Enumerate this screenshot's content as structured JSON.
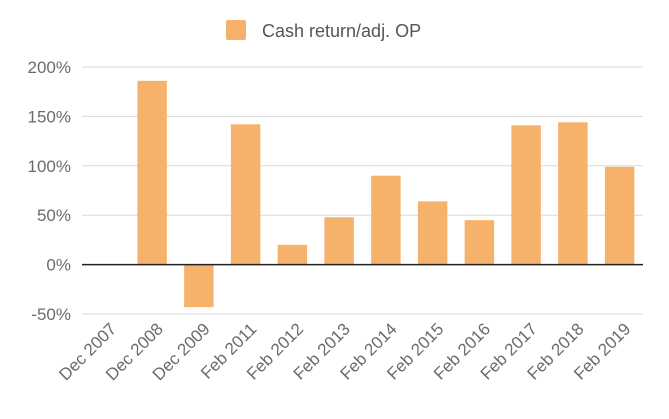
{
  "chart_data": {
    "type": "bar",
    "categories": [
      "Dec 2007",
      "Dec 2008",
      "Dec 2009",
      "Feb 2011",
      "Feb 2012",
      "Feb 2013",
      "Feb 2014",
      "Feb 2015",
      "Feb 2016",
      "Feb 2017",
      "Feb 2018",
      "Feb 2019"
    ],
    "series": [
      {
        "name": "Cash return/adj. OP",
        "color": "#f6b26b",
        "values": [
          null,
          186,
          -43,
          142,
          20,
          48,
          90,
          64,
          45,
          141,
          144,
          99
        ]
      }
    ],
    "y_ticks": [
      "200%",
      "150%",
      "100%",
      "50%",
      "0%",
      "-50%"
    ],
    "y_tick_values": [
      200,
      150,
      100,
      50,
      0,
      -50
    ],
    "ylim": [
      -50,
      200
    ],
    "grid": true,
    "legend_position": "top"
  }
}
